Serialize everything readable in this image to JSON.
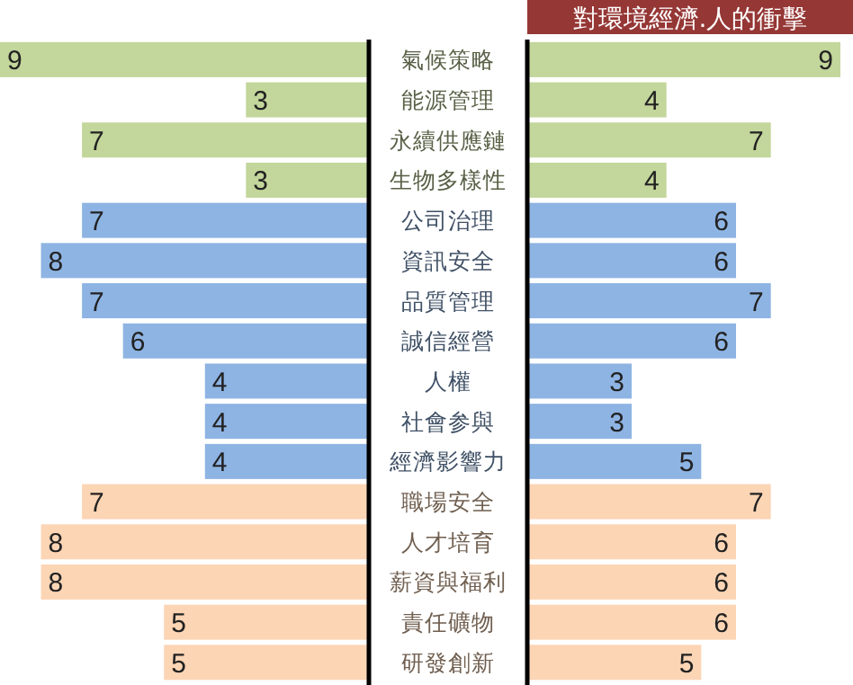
{
  "chart_data": [
    {
      "type": "bar",
      "orientation": "horizontal",
      "data_labels": true,
      "categories": [
        "氣候策略",
        "能源管理",
        "永續供應鏈",
        "生物多樣性",
        "公司治理",
        "資訊安全",
        "品質管理",
        "誠信經營",
        "人權",
        "社會参與",
        "經濟影響力",
        "職場安全",
        "人才培育",
        "薪資與福利",
        "責任礦物",
        "研發創新"
      ],
      "values": [
        9,
        3,
        7,
        3,
        7,
        8,
        7,
        6,
        4,
        4,
        4,
        7,
        8,
        8,
        5,
        5
      ],
      "colors": [
        "#c3d69b",
        "#c3d69b",
        "#c3d69b",
        "#c3d69b",
        "#8eb4e3",
        "#8eb4e3",
        "#8eb4e3",
        "#8eb4e3",
        "#8eb4e3",
        "#8eb4e3",
        "#8eb4e3",
        "#fcd5b5",
        "#fcd5b5",
        "#fcd5b5",
        "#fcd5b5",
        "#fcd5b5"
      ]
    },
    {
      "type": "bar",
      "orientation": "horizontal",
      "data_labels": true,
      "title": "對環境經濟.人的衝擊",
      "values": [
        9,
        4,
        7,
        4,
        6,
        6,
        7,
        6,
        3,
        3,
        5,
        7,
        6,
        6,
        6,
        5
      ],
      "colors": [
        "#c3d69b",
        "#c3d69b",
        "#c3d69b",
        "#c3d69b",
        "#8eb4e3",
        "#8eb4e3",
        "#8eb4e3",
        "#8eb4e3",
        "#8eb4e3",
        "#8eb4e3",
        "#8eb4e3",
        "#fcd5b5",
        "#fcd5b5",
        "#fcd5b5",
        "#fcd5b5",
        "#fcd5b5"
      ]
    }
  ]
}
